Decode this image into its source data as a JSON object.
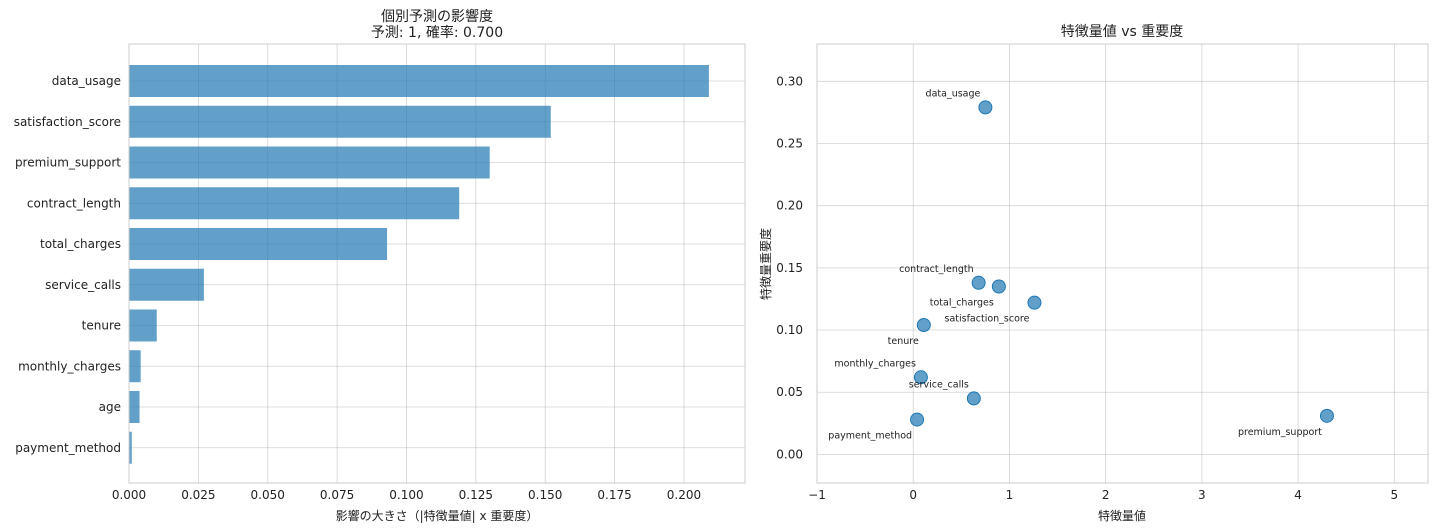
{
  "chart_data": [
    {
      "type": "bar",
      "orientation": "horizontal",
      "title": "個別予測の影響度",
      "subtitle": "予測: 1, 確率: 0.700",
      "xlabel": "影響の大きさ（|特徴量値| x 重要度）",
      "ylabel": "",
      "xlim": [
        0,
        0.222
      ],
      "xticks": [
        "0.000",
        "0.025",
        "0.050",
        "0.075",
        "0.100",
        "0.125",
        "0.150",
        "0.175",
        "0.200"
      ],
      "categories": [
        "data_usage",
        "satisfaction_score",
        "premium_support",
        "contract_length",
        "total_charges",
        "service_calls",
        "tenure",
        "monthly_charges",
        "age",
        "payment_method"
      ],
      "values": [
        0.209,
        0.152,
        0.13,
        0.119,
        0.093,
        0.027,
        0.01,
        0.0042,
        0.0038,
        0.001
      ],
      "grid": true,
      "color": "#1f77b4"
    },
    {
      "type": "scatter",
      "title": "特徴量値 vs 重要度",
      "xlabel": "特徴量値",
      "ylabel": "特徴量重要度",
      "xlim": [
        -1,
        5.35
      ],
      "ylim": [
        -0.023,
        0.33
      ],
      "xticks": [
        "−1",
        "0",
        "1",
        "2",
        "3",
        "4",
        "5"
      ],
      "yticks": [
        "0.00",
        "0.05",
        "0.10",
        "0.15",
        "0.20",
        "0.25",
        "0.30"
      ],
      "points": [
        {
          "label": "data_usage",
          "x": 0.75,
          "y": 0.279,
          "label_pos": "above-left"
        },
        {
          "label": "contract_length",
          "x": 0.68,
          "y": 0.138,
          "label_pos": "above-left"
        },
        {
          "label": "total_charges",
          "x": 0.89,
          "y": 0.135,
          "label_pos": "below-left"
        },
        {
          "label": "satisfaction_score",
          "x": 1.26,
          "y": 0.122,
          "label_pos": "below-left"
        },
        {
          "label": "tenure",
          "x": 0.11,
          "y": 0.104,
          "label_pos": "below-left"
        },
        {
          "label": "monthly_charges",
          "x": 0.08,
          "y": 0.062,
          "label_pos": "above-left"
        },
        {
          "label": "service_calls",
          "x": 0.63,
          "y": 0.045,
          "label_pos": "above-left"
        },
        {
          "label": "payment_method",
          "x": 0.04,
          "y": 0.028,
          "label_pos": "below-left"
        },
        {
          "label": "premium_support",
          "x": 4.3,
          "y": 0.031,
          "label_pos": "below-left"
        }
      ],
      "grid": true,
      "color": "#1f77b4"
    }
  ]
}
